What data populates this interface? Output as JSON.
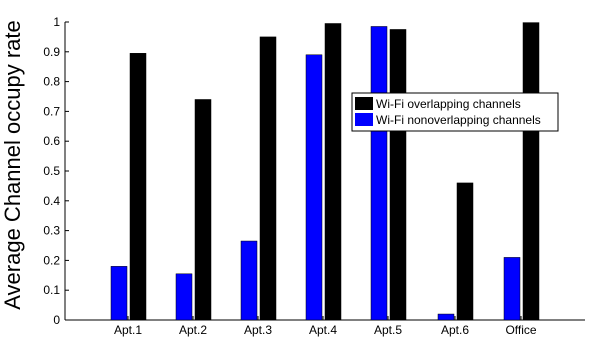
{
  "chart_data": {
    "type": "bar",
    "categories": [
      "Apt.1",
      "Apt.2",
      "Apt.3",
      "Apt.4",
      "Apt.5",
      "Apt.6",
      "Office"
    ],
    "series": [
      {
        "name": "Wi-Fi nonoverlapping channels",
        "color": "#0000ff",
        "values": [
          0.18,
          0.155,
          0.265,
          0.89,
          0.985,
          0.02,
          0.21
        ]
      },
      {
        "name": "Wi-Fi overlapping channels",
        "color": "#000000",
        "values": [
          0.895,
          0.74,
          0.95,
          0.995,
          0.975,
          0.46,
          0.998
        ]
      }
    ],
    "ylabel": "Average Channel occupy rate",
    "xlabel": "",
    "title": "",
    "ylim": [
      0,
      1
    ],
    "yticks": [
      "0",
      "0.1",
      "0.2",
      "0.3",
      "0.4",
      "0.5",
      "0.6",
      "0.7",
      "0.8",
      "0.9",
      "1"
    ],
    "legend": {
      "placement": "right",
      "entries": [
        "Wi-Fi overlapping channels",
        "Wi-Fi nonoverlapping channels"
      ]
    },
    "grid": false
  }
}
